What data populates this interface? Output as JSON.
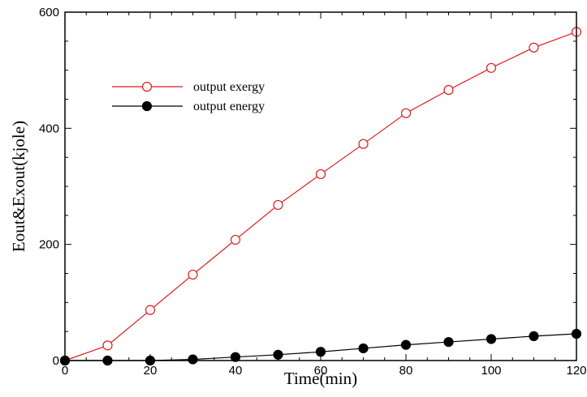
{
  "chart_data": {
    "type": "line",
    "title": "",
    "xlabel": "Time(min)",
    "ylabel": "Eout&Exout(kjole)",
    "xlim": [
      0,
      120
    ],
    "ylim": [
      0,
      600
    ],
    "x_ticks": [
      "0",
      "20",
      "40",
      "60",
      "80",
      "100",
      "120"
    ],
    "y_ticks": [
      "0",
      "200",
      "400",
      "600"
    ],
    "grid": false,
    "legend_position": "upper-left",
    "x": [
      0,
      10,
      20,
      30,
      40,
      50,
      60,
      70,
      80,
      90,
      100,
      110,
      120
    ],
    "series": [
      {
        "name": "output exergy",
        "color": "#e0191c",
        "marker": "open-circle",
        "values": [
          0,
          26,
          87,
          148,
          208,
          268,
          321,
          373,
          426,
          466,
          504,
          539,
          566
        ]
      },
      {
        "name": "output energy",
        "color": "#000000",
        "marker": "filled-circle",
        "values": [
          0,
          0,
          0,
          2,
          6,
          10,
          15,
          21,
          27,
          32,
          37,
          42,
          46
        ]
      }
    ]
  }
}
